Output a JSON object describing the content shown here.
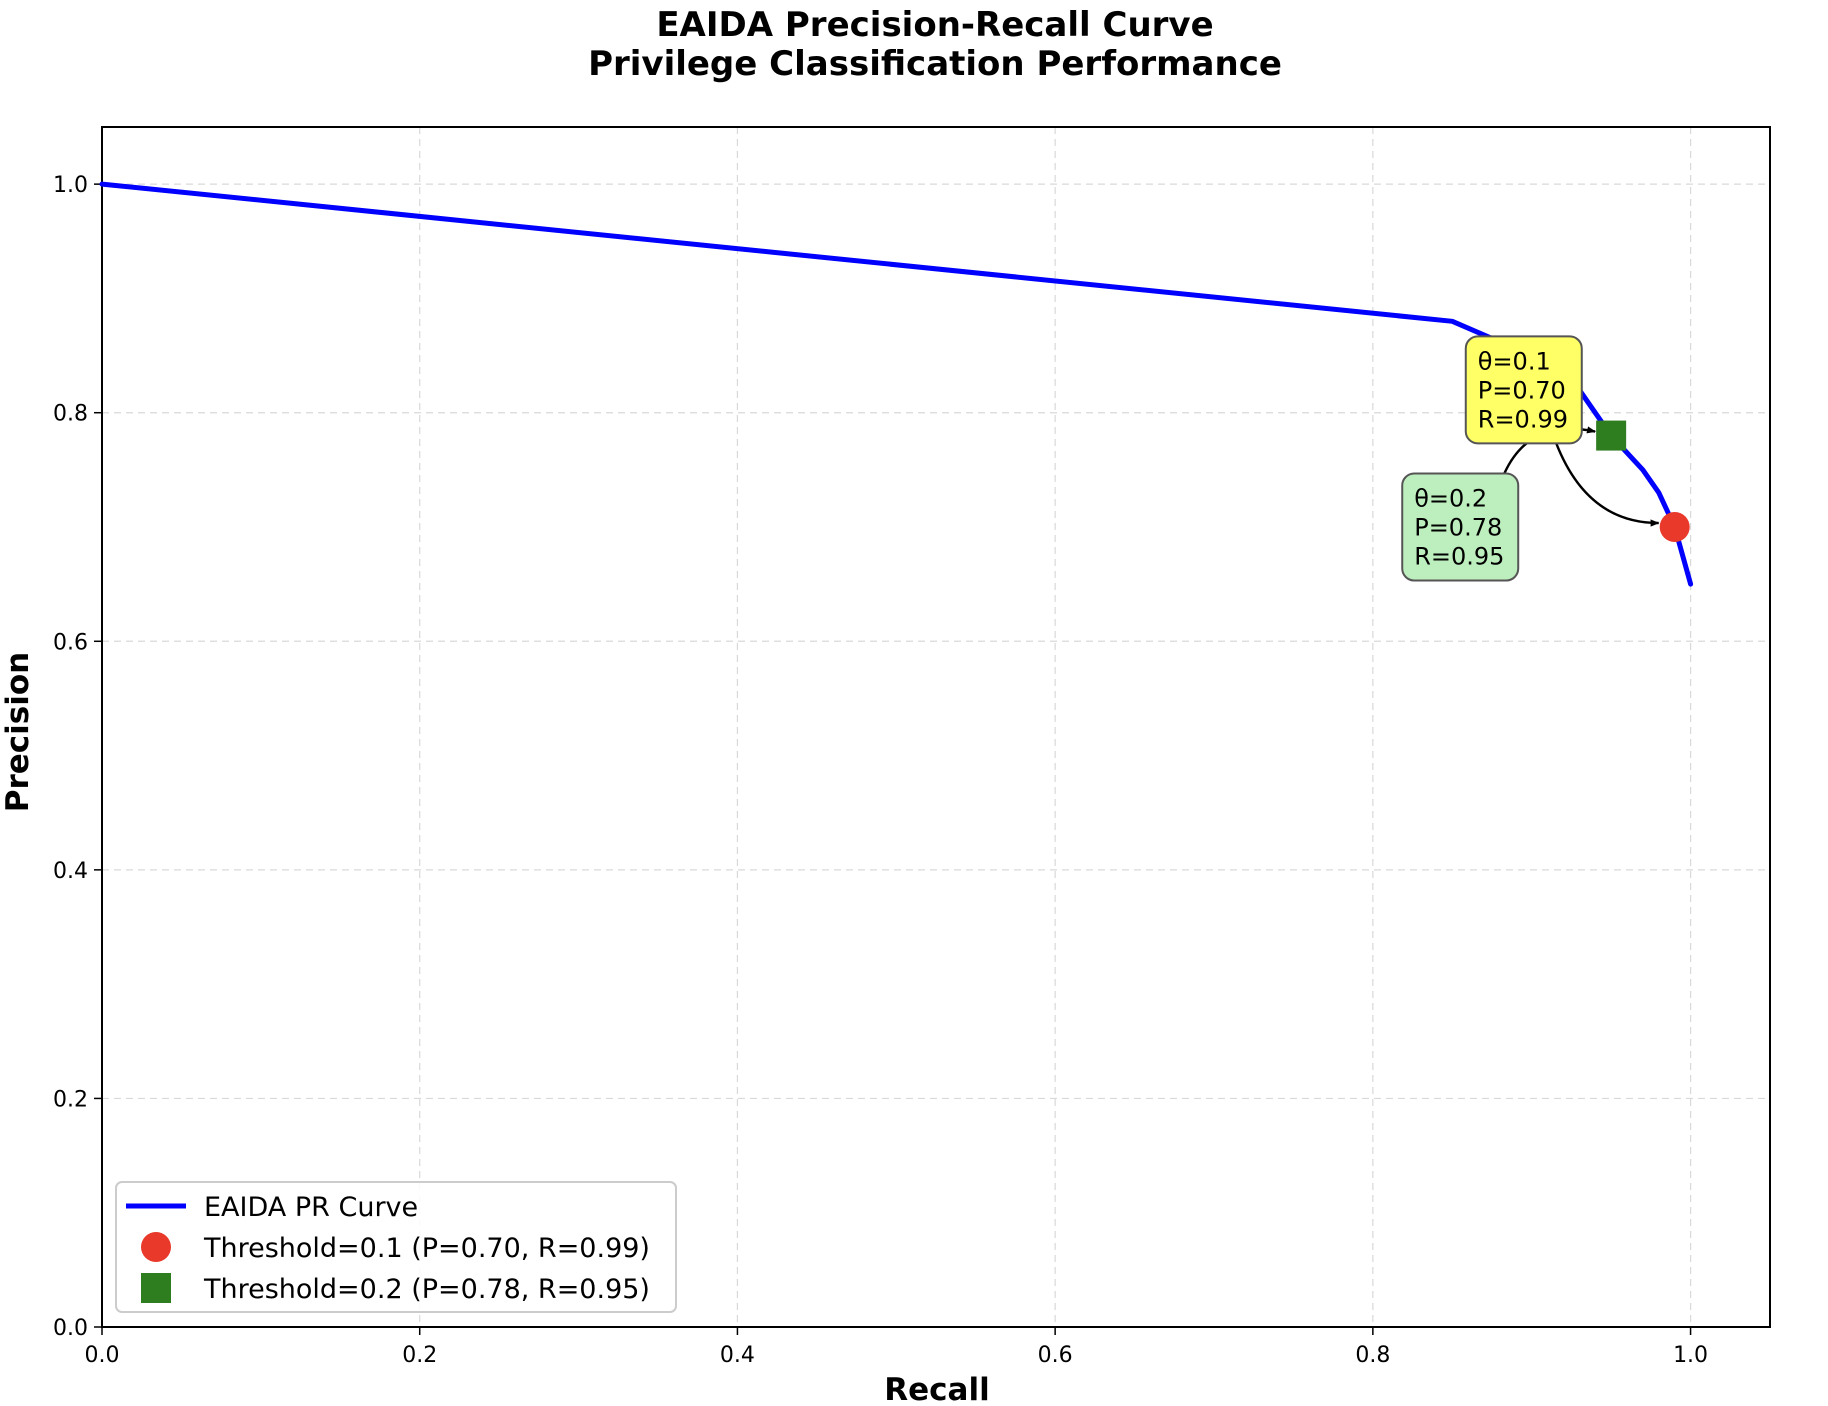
{
  "chart_data": {
    "type": "line",
    "title": "EAIDA Precision-Recall Curve",
    "subtitle": "Privilege Classification Performance",
    "xlabel": "Recall",
    "ylabel": "Precision",
    "xlim": [
      0.0,
      1.05
    ],
    "ylim": [
      0.0,
      1.05
    ],
    "xticks": [
      "0.0",
      "0.2",
      "0.4",
      "0.6",
      "0.8",
      "1.0"
    ],
    "yticks": [
      "0.0",
      "0.2",
      "0.4",
      "0.6",
      "0.8",
      "1.0"
    ],
    "grid": true,
    "legend_position": "lower-left",
    "series": [
      {
        "name": "EAIDA PR Curve",
        "color": "#0000ff",
        "x": [
          0.0,
          0.85,
          0.9,
          0.93,
          0.95,
          0.97,
          0.98,
          0.99,
          1.0
        ],
        "y": [
          1.0,
          0.88,
          0.85,
          0.82,
          0.78,
          0.75,
          0.73,
          0.7,
          0.65
        ]
      }
    ],
    "points": [
      {
        "name": "Threshold=0.1 (P=0.70, R=0.99)",
        "x": 0.99,
        "y": 0.7,
        "marker": "circle",
        "color": "#e8392a"
      },
      {
        "name": "Threshold=0.2 (P=0.78, R=0.95)",
        "x": 0.95,
        "y": 0.78,
        "marker": "square",
        "color": "#2e7d1e"
      }
    ],
    "annotations": [
      {
        "lines": [
          "θ=0.1",
          "P=0.70",
          "R=0.99"
        ],
        "box_color": "#ffff66",
        "text_x": 0.895,
        "text_y": 0.82,
        "target_x": 0.99,
        "target_y": 0.7
      },
      {
        "lines": [
          "θ=0.2",
          "P=0.78",
          "R=0.95"
        ],
        "box_color": "#bdeebd",
        "text_x": 0.855,
        "text_y": 0.7,
        "target_x": 0.95,
        "target_y": 0.78
      }
    ]
  }
}
